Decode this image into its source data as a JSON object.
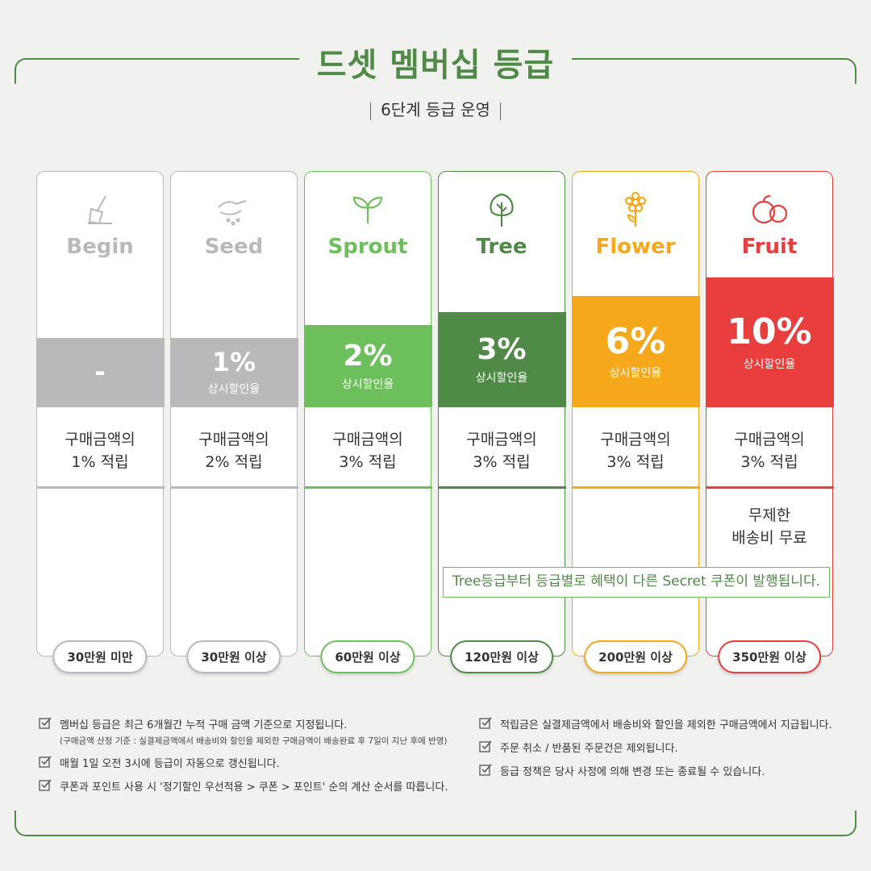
{
  "header": {
    "title": "드셋 멤버십 등급",
    "subtitle": "6단계 등급 운영"
  },
  "tiers": [
    {
      "name": "Begin",
      "icon": "trowel-icon",
      "rate": "-",
      "rate_label": "",
      "benefit_line1": "구매금액의",
      "benefit_line2": "1% 적립",
      "extra_line1": "",
      "extra_line2": "",
      "threshold": "30만원 미만",
      "color": "#b7b9bb"
    },
    {
      "name": "Seed",
      "icon": "seed-hand-icon",
      "rate": "1%",
      "rate_label": "상시할인율",
      "benefit_line1": "구매금액의",
      "benefit_line2": "2% 적립",
      "extra_line1": "",
      "extra_line2": "",
      "threshold": "30만원 이상",
      "color": "#b7b9bb"
    },
    {
      "name": "Sprout",
      "icon": "sprout-icon",
      "rate": "2%",
      "rate_label": "상시할인율",
      "benefit_line1": "구매금액의",
      "benefit_line2": "3% 적립",
      "extra_line1": "",
      "extra_line2": "",
      "threshold": "60만원 이상",
      "color": "#6dbf5c"
    },
    {
      "name": "Tree",
      "icon": "tree-icon",
      "rate": "3%",
      "rate_label": "상시할인율",
      "benefit_line1": "구매금액의",
      "benefit_line2": "3% 적립",
      "extra_line1": "",
      "extra_line2": "",
      "threshold": "120만원 이상",
      "color": "#4f8b47"
    },
    {
      "name": "Flower",
      "icon": "flower-icon",
      "rate": "6%",
      "rate_label": "상시할인율",
      "benefit_line1": "구매금액의",
      "benefit_line2": "3% 적립",
      "extra_line1": "",
      "extra_line2": "",
      "threshold": "200만원 이상",
      "color": "#f6a81c"
    },
    {
      "name": "Fruit",
      "icon": "fruit-icon",
      "rate": "10%",
      "rate_label": "상시할인율",
      "benefit_line1": "구매금액의",
      "benefit_line2": "3% 적립",
      "extra_line1": "무제한",
      "extra_line2": "배송비 무료",
      "threshold": "350만원 이상",
      "color": "#e83e3e"
    }
  ],
  "coupon_notice": "Tree등급부터 등급별로 혜택이 다른 Secret 쿠폰이 발행됩니다.",
  "notes_left": [
    "멤버십 등급은 최근 6개월간 누적 구매 금액 기준으로 지정됩니다.",
    "매월 1일 오전 3시에 등급이 자동으로 갱신됩니다.",
    "쿠폰과 포인트 사용 시 '정기할인 우선적용 > 쿠폰 > 포인트' 순의 계산 순서를 따릅니다."
  ],
  "note_sub": "(구매금액 산정 기준 : 실결제금액에서 배송비와 할인을 제외한 구매금액이 배송완료 후 7일이 지난 후에 반영)",
  "notes_right": [
    "적립금은 실결제금액에서 배송비와 할인을 제외한 구매금액에서 지급됩니다.",
    "주문 취소 / 반품된 주문건은 제외됩니다.",
    "등급 정책은 당사 사정에 의해 변경 또는 종료될 수 있습니다."
  ]
}
